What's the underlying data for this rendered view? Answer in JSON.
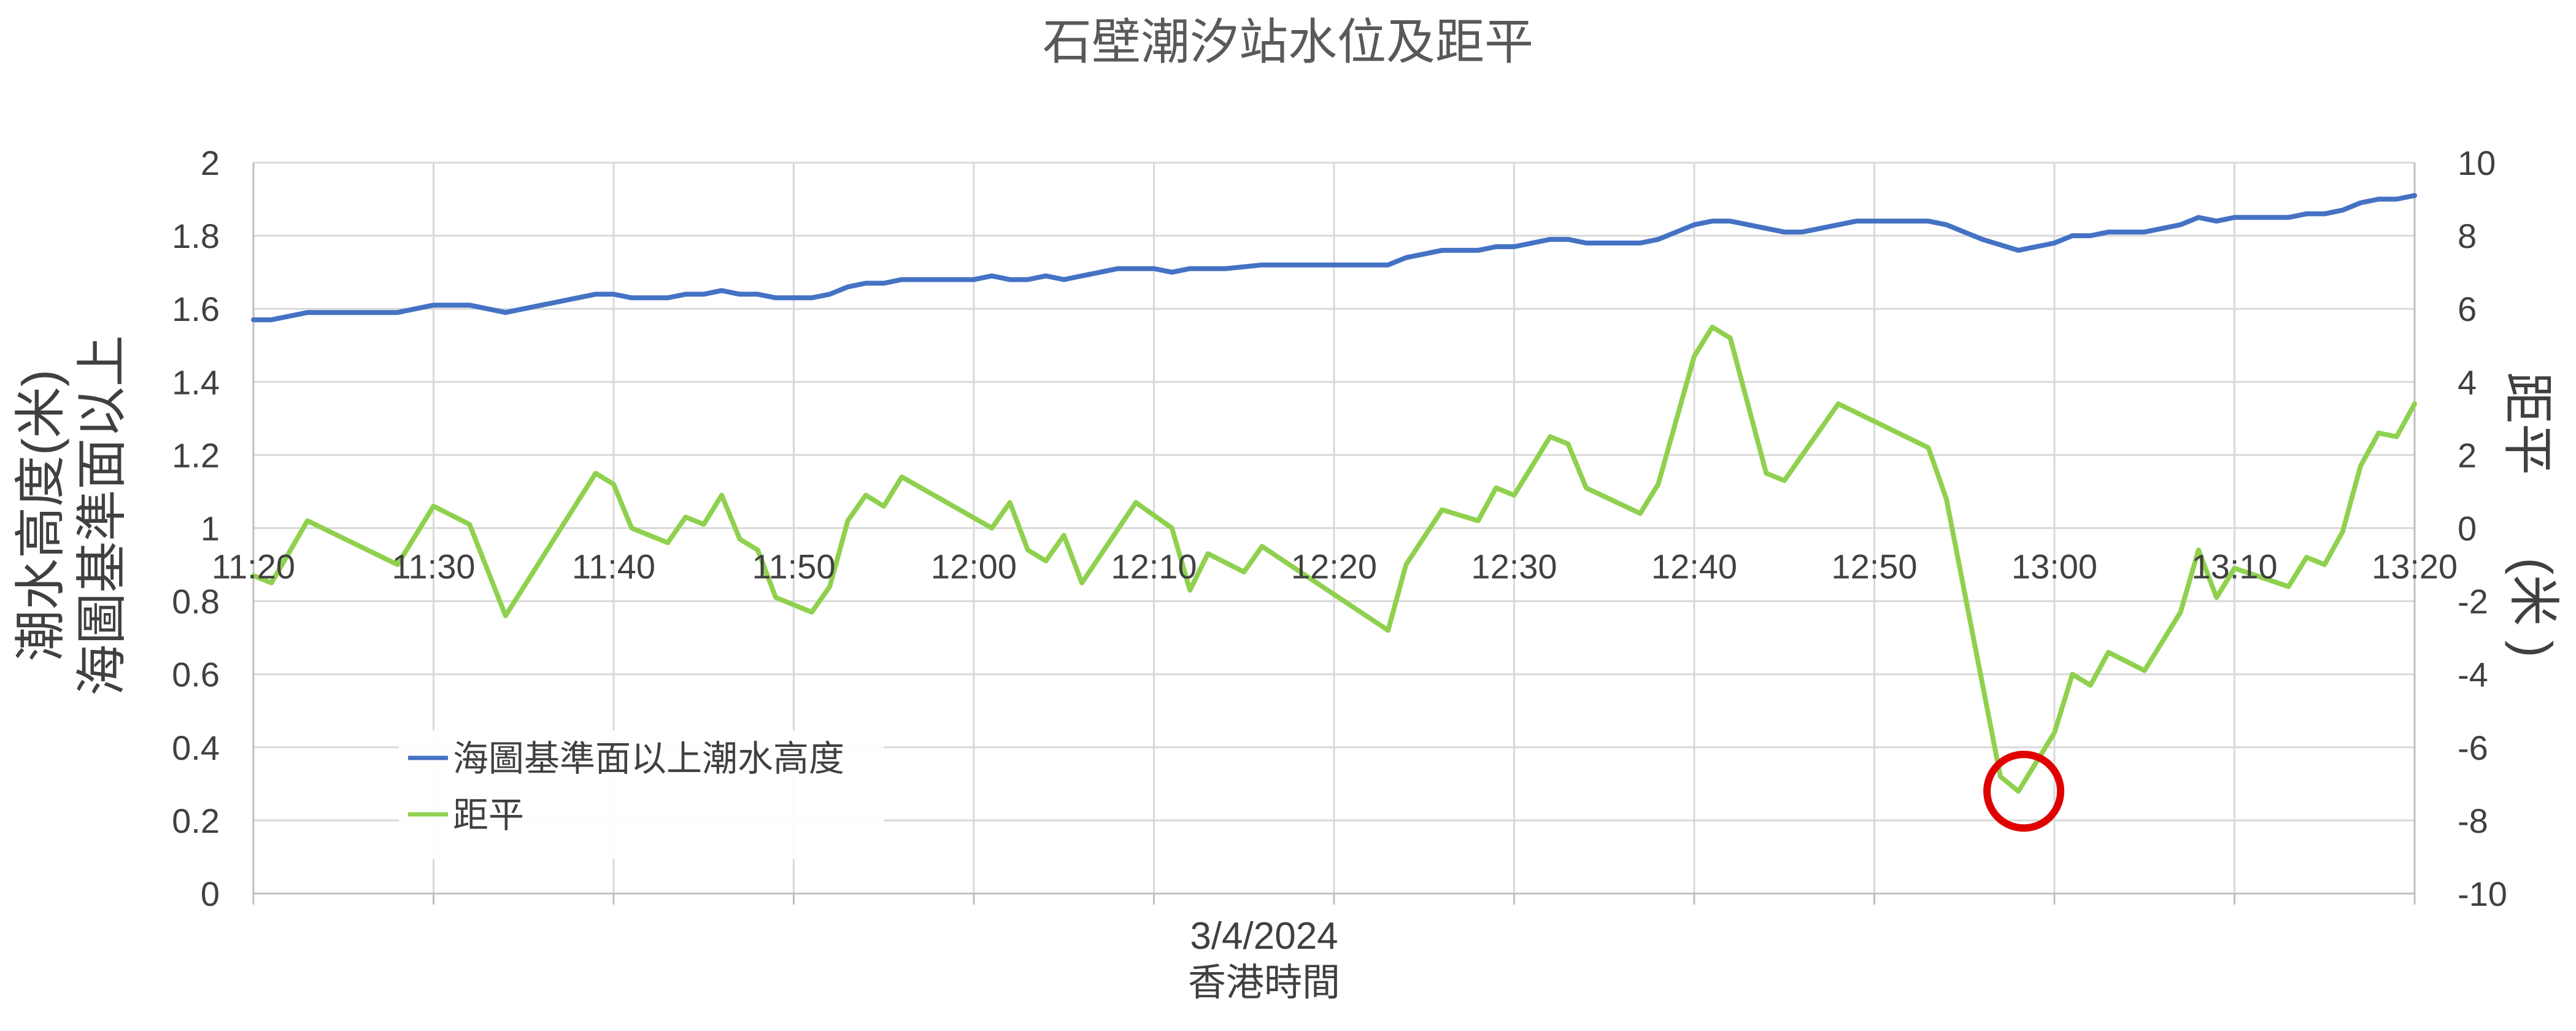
{
  "chart_data": {
    "type": "line",
    "title": "石壁潮汐站水位及距平",
    "x_caption_date": "3/4/2024",
    "x_caption_tz": "香港時間",
    "y_left_label_lines": [
      "潮水高度(米)",
      "海圖基準面以上"
    ],
    "y_right_label_lines": [
      "距平",
      "(米 )"
    ],
    "x_ticks": [
      "11:20",
      "11:30",
      "11:40",
      "11:50",
      "12:00",
      "12:10",
      "12:20",
      "12:30",
      "12:40",
      "12:50",
      "13:00",
      "13:10",
      "13:20"
    ],
    "y_left_ticks": [
      "0",
      "0.2",
      "0.4",
      "0.6",
      "0.8",
      "1",
      "1.2",
      "1.4",
      "1.6",
      "1.8",
      "2"
    ],
    "y_right_ticks": [
      "-10",
      "-8",
      "-6",
      "-4",
      "-2",
      "0",
      "2",
      "4",
      "6",
      "8",
      "10"
    ],
    "x_range_minutes": [
      0,
      120
    ],
    "y_left_range": [
      0,
      2
    ],
    "y_right_range": [
      -10,
      10
    ],
    "grid": true,
    "legend_position": "bottom-left",
    "series": [
      {
        "name": "海圖基準面以上潮水高度",
        "axis": "left",
        "color": "#4472C4",
        "points": [
          [
            0,
            1.57
          ],
          [
            1,
            1.57
          ],
          [
            3,
            1.59
          ],
          [
            5,
            1.59
          ],
          [
            8,
            1.59
          ],
          [
            10,
            1.61
          ],
          [
            12,
            1.61
          ],
          [
            14,
            1.59
          ],
          [
            16,
            1.61
          ],
          [
            19,
            1.64
          ],
          [
            20,
            1.64
          ],
          [
            21,
            1.63
          ],
          [
            23,
            1.63
          ],
          [
            24,
            1.64
          ],
          [
            25,
            1.64
          ],
          [
            26,
            1.65
          ],
          [
            27,
            1.64
          ],
          [
            28,
            1.64
          ],
          [
            29,
            1.63
          ],
          [
            31,
            1.63
          ],
          [
            32,
            1.64
          ],
          [
            33,
            1.66
          ],
          [
            34,
            1.67
          ],
          [
            35,
            1.67
          ],
          [
            36,
            1.68
          ],
          [
            38,
            1.68
          ],
          [
            40,
            1.68
          ],
          [
            41,
            1.69
          ],
          [
            42,
            1.68
          ],
          [
            43,
            1.68
          ],
          [
            44,
            1.69
          ],
          [
            45,
            1.68
          ],
          [
            46,
            1.69
          ],
          [
            48,
            1.71
          ],
          [
            50,
            1.71
          ],
          [
            51,
            1.7
          ],
          [
            52,
            1.71
          ],
          [
            54,
            1.71
          ],
          [
            56,
            1.72
          ],
          [
            58,
            1.72
          ],
          [
            60,
            1.72
          ],
          [
            63,
            1.72
          ],
          [
            64,
            1.74
          ],
          [
            66,
            1.76
          ],
          [
            68,
            1.76
          ],
          [
            69,
            1.77
          ],
          [
            70,
            1.77
          ],
          [
            71,
            1.78
          ],
          [
            72,
            1.79
          ],
          [
            73,
            1.79
          ],
          [
            74,
            1.78
          ],
          [
            77,
            1.78
          ],
          [
            78,
            1.79
          ],
          [
            80,
            1.83
          ],
          [
            81,
            1.84
          ],
          [
            82,
            1.84
          ],
          [
            85,
            1.81
          ],
          [
            86,
            1.81
          ],
          [
            89,
            1.84
          ],
          [
            93,
            1.84
          ],
          [
            94,
            1.83
          ],
          [
            96,
            1.79
          ],
          [
            98,
            1.76
          ],
          [
            100,
            1.78
          ],
          [
            101,
            1.8
          ],
          [
            102,
            1.8
          ],
          [
            103,
            1.81
          ],
          [
            105,
            1.81
          ],
          [
            107,
            1.83
          ],
          [
            108,
            1.85
          ],
          [
            109,
            1.84
          ],
          [
            110,
            1.85
          ],
          [
            113,
            1.85
          ],
          [
            114,
            1.86
          ],
          [
            115,
            1.86
          ],
          [
            116,
            1.87
          ],
          [
            117,
            1.89
          ],
          [
            118,
            1.9
          ],
          [
            119,
            1.9
          ],
          [
            120,
            1.91
          ]
        ]
      },
      {
        "name": "距平",
        "axis": "right",
        "color": "#8FD14F",
        "points": [
          [
            0,
            -1.3
          ],
          [
            1,
            -1.5
          ],
          [
            3,
            0.2
          ],
          [
            8,
            -1.0
          ],
          [
            10,
            0.6
          ],
          [
            12,
            0.1
          ],
          [
            14,
            -2.4
          ],
          [
            19,
            1.5
          ],
          [
            20,
            1.2
          ],
          [
            21,
            0.0
          ],
          [
            23,
            -0.4
          ],
          [
            24,
            0.3
          ],
          [
            25,
            0.1
          ],
          [
            26,
            0.9
          ],
          [
            27,
            -0.3
          ],
          [
            28,
            -0.6
          ],
          [
            29,
            -1.9
          ],
          [
            31,
            -2.3
          ],
          [
            32,
            -1.6
          ],
          [
            33,
            0.2
          ],
          [
            34,
            0.9
          ],
          [
            35,
            0.6
          ],
          [
            36,
            1.4
          ],
          [
            41,
            0.0
          ],
          [
            42,
            0.7
          ],
          [
            43,
            -0.6
          ],
          [
            44,
            -0.9
          ],
          [
            45,
            -0.2
          ],
          [
            46,
            -1.5
          ],
          [
            49,
            0.7
          ],
          [
            51,
            0.0
          ],
          [
            52,
            -1.7
          ],
          [
            53,
            -0.7
          ],
          [
            55,
            -1.2
          ],
          [
            56,
            -0.5
          ],
          [
            63,
            -2.8
          ],
          [
            64,
            -1.0
          ],
          [
            66,
            0.5
          ],
          [
            68,
            0.2
          ],
          [
            69,
            1.1
          ],
          [
            70,
            0.9
          ],
          [
            72,
            2.5
          ],
          [
            73,
            2.3
          ],
          [
            74,
            1.1
          ],
          [
            77,
            0.4
          ],
          [
            78,
            1.2
          ],
          [
            80,
            4.7
          ],
          [
            81,
            5.5
          ],
          [
            82,
            5.2
          ],
          [
            84,
            1.5
          ],
          [
            85,
            1.3
          ],
          [
            88,
            3.4
          ],
          [
            93,
            2.2
          ],
          [
            94,
            0.8
          ],
          [
            97,
            -6.8
          ],
          [
            98,
            -7.2
          ],
          [
            100,
            -5.6
          ],
          [
            101,
            -4.0
          ],
          [
            102,
            -4.3
          ],
          [
            103,
            -3.4
          ],
          [
            105,
            -3.9
          ],
          [
            107,
            -2.3
          ],
          [
            108,
            -0.6
          ],
          [
            109,
            -1.9
          ],
          [
            110,
            -1.1
          ],
          [
            113,
            -1.6
          ],
          [
            114,
            -0.8
          ],
          [
            115,
            -1.0
          ],
          [
            116,
            -0.1
          ],
          [
            117,
            1.7
          ],
          [
            118,
            2.6
          ],
          [
            119,
            2.5
          ],
          [
            120,
            3.4
          ]
        ]
      }
    ],
    "annotation": {
      "type": "circle",
      "color": "#E00000",
      "x": 98.3,
      "y_right": -7.2
    }
  }
}
